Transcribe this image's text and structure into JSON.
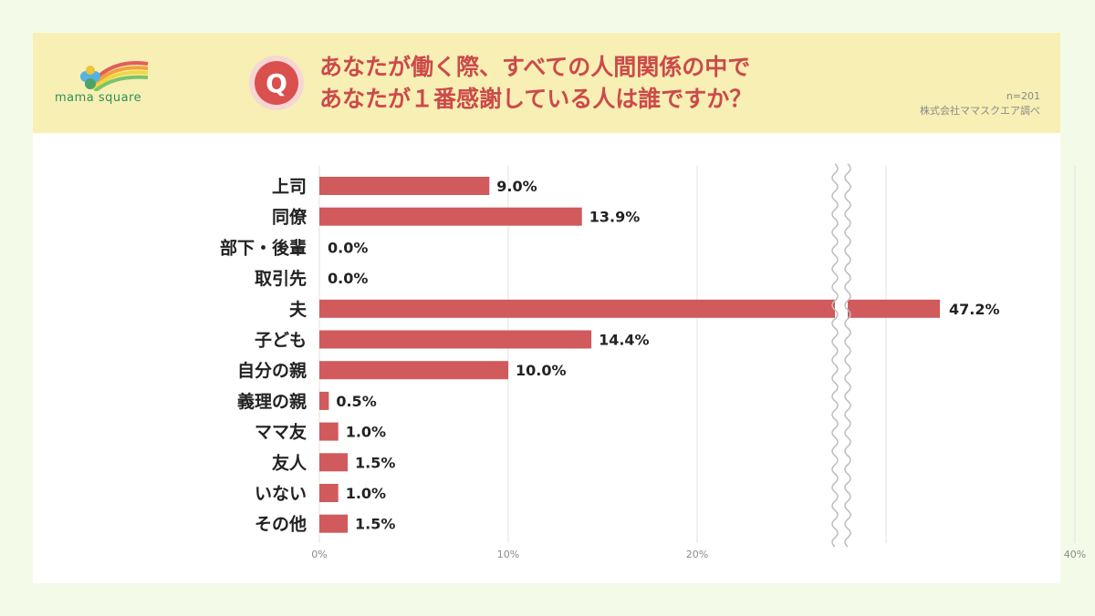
{
  "header": {
    "brand": "mama square",
    "q_mark": "Q",
    "title_line1": "あなたが働く際、すべての人間関係の中で",
    "title_line2": "あなたが１番感謝している人は誰ですか？",
    "sample": "n=201",
    "source": "株式会社ママスクエア調べ"
  },
  "colors": {
    "bar": "#d05a5c",
    "header_bg": "#f7efb4",
    "accent": "#cc4a4a",
    "page_bg": "#f3fbe8"
  },
  "chart_data": {
    "type": "bar",
    "orientation": "horizontal",
    "categories": [
      "上司",
      "同僚",
      "部下・後輩",
      "取引先",
      "夫",
      "子ども",
      "自分の親",
      "義理の親",
      "ママ友",
      "友人",
      "いない",
      "その他"
    ],
    "values": [
      9.0,
      13.9,
      0.0,
      0.0,
      47.2,
      14.4,
      10.0,
      0.5,
      1.0,
      1.5,
      1.0,
      1.5
    ],
    "value_labels": [
      "9.0%",
      "13.9%",
      "0.0%",
      "0.0%",
      "47.2%",
      "14.4%",
      "10.0%",
      "0.5%",
      "1.0%",
      "1.5%",
      "1.0%",
      "1.5%"
    ],
    "x_ticks": [
      "0%",
      "10%",
      "20%",
      "40%"
    ],
    "axis_break": true,
    "grid": true,
    "legend": "none"
  }
}
